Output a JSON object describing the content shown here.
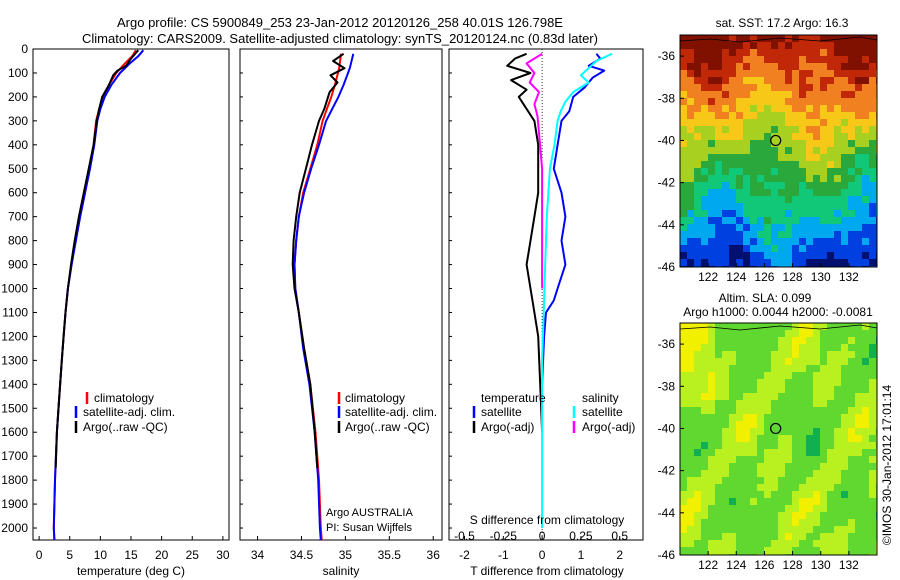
{
  "header": {
    "line1": "Argo profile: CS 5900849_253 23-Jan-2012 20120126_258 40.01S 126.798E",
    "line2": "Climatology: CARS2009. Satellite-adjusted climatology: synTS_20120124.nc (0.83d later)"
  },
  "side_label": "©IMOS 30-Jan-2012 17:01:14",
  "colors": {
    "climatology": "#ff0000",
    "satellite": "#0000ff",
    "argo": "#000000",
    "salinity_satellite": "#00ffff",
    "salinity_argo": "#ff00ff",
    "marker": "#000000",
    "sst_ramp": [
      "#00106e",
      "#0040e0",
      "#00a8f0",
      "#10c878",
      "#2aa83c",
      "#a8d020",
      "#f8c818",
      "#f08020",
      "#c02808",
      "#801000"
    ],
    "sla_ramp": [
      "#10b050",
      "#60d830",
      "#b8f020",
      "#f0f000"
    ]
  },
  "chart_data": [
    {
      "type": "line",
      "panel": "temperature",
      "xlabel": "temperature (deg C)",
      "ylabel": "",
      "xlim": [
        -1,
        31
      ],
      "ylim": [
        2050,
        0
      ],
      "xticks": [
        "0",
        "5",
        "10",
        "15",
        "20",
        "25",
        "30"
      ],
      "yticks": [
        "0",
        "100",
        "200",
        "300",
        "400",
        "500",
        "600",
        "700",
        "800",
        "900",
        "1000",
        "1100",
        "1200",
        "1300",
        "1400",
        "1500",
        "1600",
        "1700",
        "1800",
        "1900",
        "2000"
      ],
      "legend": [
        "climatology",
        "satellite-adj. clim.",
        "Argo(..raw -QC)"
      ],
      "series": [
        {
          "name": "climatology",
          "color": "#ff0000",
          "x": [
            15.8,
            15.2,
            14.0,
            12.6,
            11.4,
            10.4,
            9.8,
            9.3,
            8.9,
            8.2,
            7.4,
            6.6,
            5.9,
            5.3,
            4.7,
            4.3,
            4.0,
            3.7,
            3.3,
            2.9,
            2.6,
            2.5,
            2.4,
            2.5
          ],
          "y": [
            5,
            30,
            60,
            100,
            150,
            200,
            250,
            300,
            400,
            500,
            600,
            700,
            800,
            900,
            1000,
            1100,
            1200,
            1300,
            1450,
            1600,
            1800,
            1900,
            2000,
            2050
          ]
        },
        {
          "name": "satellite-adj. clim.",
          "color": "#0000ff",
          "x": [
            17.0,
            16.2,
            14.8,
            13.2,
            11.8,
            10.7,
            10.0,
            9.5,
            9.0,
            8.3,
            7.5,
            6.7,
            6.0,
            5.3,
            4.7,
            4.3,
            4.0,
            3.7,
            3.3,
            2.9,
            2.6,
            2.5,
            2.4,
            2.5
          ],
          "y": [
            5,
            30,
            60,
            100,
            150,
            200,
            250,
            300,
            400,
            500,
            600,
            700,
            800,
            900,
            1000,
            1100,
            1200,
            1300,
            1450,
            1600,
            1800,
            1900,
            2000,
            2050
          ]
        },
        {
          "name": "Argo(..raw -QC)",
          "color": "#000000",
          "x": [
            16.2,
            15.0,
            14.2,
            12.8,
            12.1,
            11.4,
            10.3,
            9.8,
            9.4,
            8.9,
            8.1,
            7.3,
            6.5,
            5.8,
            5.2,
            4.7,
            4.3,
            4.0,
            3.7,
            3.3,
            2.9,
            2.7
          ],
          "y": [
            5,
            40,
            70,
            90,
            110,
            150,
            200,
            250,
            300,
            400,
            500,
            600,
            700,
            800,
            900,
            1000,
            1100,
            1200,
            1300,
            1450,
            1600,
            1750
          ]
        }
      ]
    },
    {
      "type": "line",
      "panel": "salinity",
      "xlabel": "salinity",
      "ylabel": "",
      "xlim": [
        33.8,
        36.1
      ],
      "ylim": [
        2050,
        0
      ],
      "xticks": [
        "34",
        "34.5",
        "35",
        "35.5",
        "36"
      ],
      "legend": [
        "climatology",
        "satellite-adj. clim.",
        "Argo(..raw -QC)"
      ],
      "series": [
        {
          "name": "climatology",
          "color": "#ff0000",
          "x": [
            34.95,
            34.93,
            34.88,
            34.84,
            34.79,
            34.74,
            34.68,
            34.6,
            34.52,
            34.47,
            34.44,
            34.42,
            34.43,
            34.47,
            34.53,
            34.6,
            34.66,
            34.7,
            34.72,
            34.73
          ],
          "y": [
            20,
            80,
            150,
            200,
            250,
            300,
            400,
            500,
            600,
            700,
            800,
            900,
            1000,
            1100,
            1250,
            1400,
            1600,
            1800,
            2000,
            2050
          ]
        },
        {
          "name": "satellite-adj. clim.",
          "color": "#0000ff",
          "x": [
            35.09,
            35.05,
            34.98,
            34.92,
            34.85,
            34.78,
            34.7,
            34.61,
            34.53,
            34.47,
            34.44,
            34.42,
            34.43,
            34.47,
            34.52,
            34.59,
            34.65,
            34.69,
            34.71,
            34.72
          ],
          "y": [
            20,
            80,
            150,
            200,
            250,
            300,
            400,
            500,
            600,
            700,
            800,
            900,
            1000,
            1100,
            1250,
            1400,
            1600,
            1800,
            2000,
            2050
          ]
        },
        {
          "name": "Argo(..raw -QC)",
          "color": "#000000",
          "x": [
            34.98,
            34.86,
            34.99,
            34.83,
            34.91,
            34.82,
            34.76,
            34.7,
            34.62,
            34.55,
            34.48,
            34.44,
            34.41,
            34.4,
            34.42,
            34.47,
            34.53,
            34.6,
            34.65,
            34.68
          ],
          "y": [
            20,
            50,
            80,
            110,
            140,
            180,
            250,
            300,
            400,
            500,
            600,
            700,
            800,
            900,
            1000,
            1100,
            1250,
            1400,
            1600,
            1750
          ]
        }
      ]
    },
    {
      "type": "line",
      "panel": "difference",
      "xlabel": "T difference from climatology",
      "x2label": "S difference from climatology",
      "ylabel": "",
      "xlim": [
        -2.4,
        2.6
      ],
      "x2lim": [
        -0.6,
        0.65
      ],
      "ylim": [
        2050,
        0
      ],
      "xticks": [
        "-2",
        "-1",
        "0",
        "1",
        "2"
      ],
      "x2ticks": [
        "-0.5",
        "-0.25",
        "0",
        "0.25",
        "0.5"
      ],
      "legend": [
        "temperature",
        "satellite",
        "Argo(-adj)",
        "salinity",
        "satellite",
        "Argo(-adj)"
      ],
      "series": [
        {
          "name": "temperature satellite",
          "color": "#0000ff",
          "x": [
            1.4,
            1.5,
            1.2,
            1.6,
            1.3,
            1.1,
            0.8,
            0.7,
            0.5,
            0.4,
            0.3,
            0.5,
            0.6,
            0.5,
            0.6,
            0.4,
            0.3,
            0.1,
            0.05,
            0.0
          ],
          "y": [
            20,
            40,
            70,
            90,
            120,
            160,
            200,
            260,
            300,
            400,
            500,
            600,
            700,
            800,
            900,
            1000,
            1050,
            1100,
            1200,
            1400
          ]
        },
        {
          "name": "temperature Argo(-adj)",
          "color": "#000000",
          "x": [
            -0.4,
            -0.7,
            -0.9,
            -0.3,
            -0.8,
            -0.4,
            -0.6,
            -0.4,
            -0.2,
            -0.1,
            -0.1,
            -0.1,
            -0.2,
            -0.3,
            -0.4,
            -0.3,
            -0.2,
            -0.1,
            -0.05,
            0.0
          ],
          "y": [
            20,
            40,
            70,
            100,
            130,
            170,
            200,
            250,
            300,
            400,
            500,
            600,
            700,
            800,
            900,
            1000,
            1100,
            1200,
            1400,
            1600
          ]
        },
        {
          "name": "salinity satellite",
          "color": "#00ffff",
          "x": [
            0.45,
            0.35,
            0.3,
            0.25,
            0.3,
            0.2,
            0.15,
            0.12,
            0.1,
            0.08,
            0.05,
            0.03,
            0.02,
            0.01,
            0.0,
            0.0,
            0.0
          ],
          "y": [
            20,
            50,
            80,
            110,
            140,
            180,
            220,
            260,
            300,
            400,
            500,
            700,
            900,
            1100,
            1300,
            1600,
            2000
          ]
        },
        {
          "name": "salinity Argo(-adj)",
          "color": "#ff00ff",
          "x": [
            0.0,
            -0.1,
            -0.05,
            -0.08,
            -0.02,
            -0.05,
            -0.03,
            -0.02,
            0.0,
            0.0,
            0.0
          ],
          "y": [
            20,
            60,
            100,
            140,
            180,
            230,
            280,
            350,
            500,
            800,
            1000
          ]
        }
      ]
    },
    {
      "type": "heatmap",
      "panel": "map-sst",
      "title": "sat. SST: 17.2  Argo: 16.3",
      "xlim": [
        120,
        134
      ],
      "ylim": [
        -46,
        -35
      ],
      "xticks": [
        "122",
        "124",
        "126",
        "128",
        "130",
        "132"
      ],
      "yticks": [
        "-36",
        "-38",
        "-40",
        "-42",
        "-44",
        "-46"
      ],
      "marker": {
        "lon": 126.8,
        "lat": -40.0
      }
    },
    {
      "type": "heatmap",
      "panel": "map-sla",
      "title": "Altim. SLA: 0.099",
      "subtitle": "Argo h1000: 0.0044 h2000: -0.0081",
      "xlim": [
        120,
        134
      ],
      "ylim": [
        -46,
        -35
      ],
      "xticks": [
        "122",
        "124",
        "126",
        "128",
        "130",
        "132"
      ],
      "yticks": [
        "-36",
        "-38",
        "-40",
        "-42",
        "-44",
        "-46"
      ],
      "marker": {
        "lon": 126.8,
        "lat": -40.0
      }
    }
  ]
}
